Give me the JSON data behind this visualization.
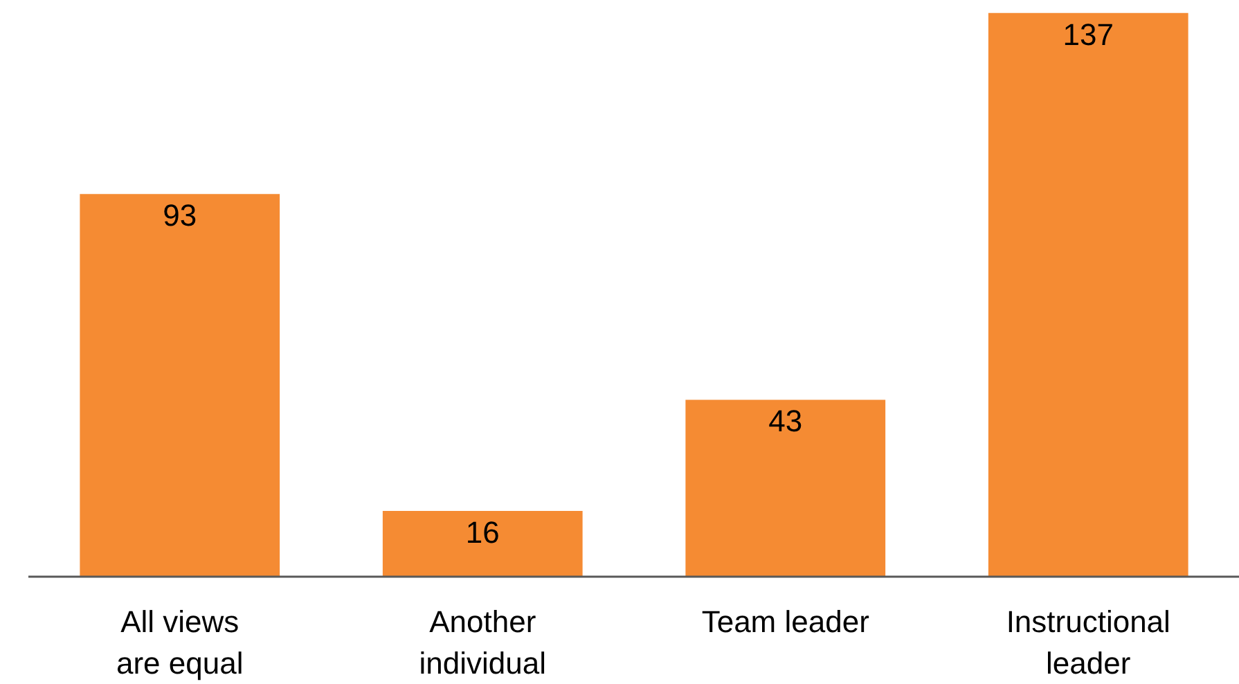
{
  "chart_data": {
    "type": "bar",
    "categories": [
      "All views are equal",
      "Another individual",
      "Team leader",
      "Instructional leader"
    ],
    "values": [
      93,
      16,
      43,
      137
    ],
    "color": "#f58b33",
    "data_labels": true
  }
}
